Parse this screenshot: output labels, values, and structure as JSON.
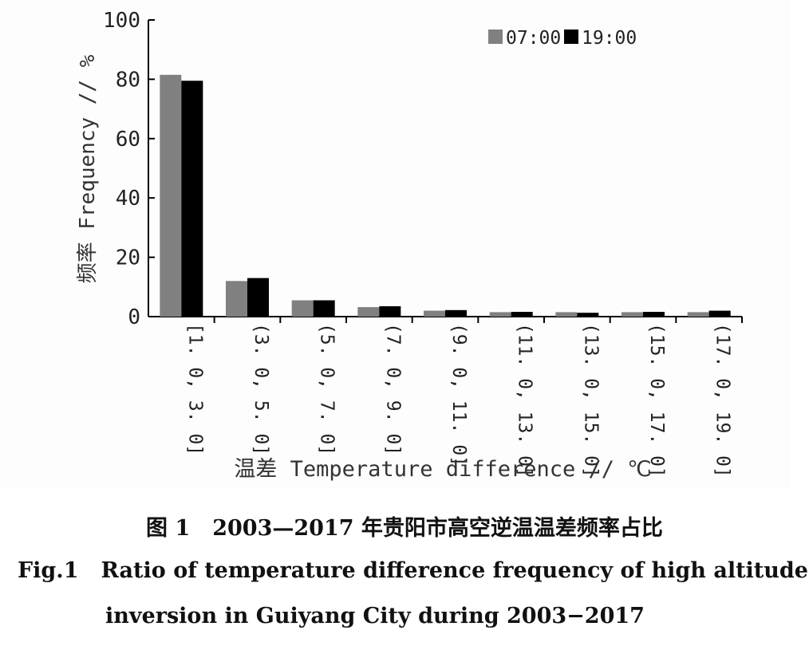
{
  "chart_data": {
    "type": "bar",
    "ylabel": "频率 Frequency // %",
    "xlabel": "温差 Temperature difference // ℃",
    "ylim": [
      0,
      100
    ],
    "yticks": [
      0,
      20,
      40,
      60,
      80,
      100
    ],
    "legend_position": "top-right",
    "categories": [
      "[1. 0, 3. 0]",
      "(3. 0, 5. 0]",
      "(5. 0, 7. 0]",
      "(7. 0, 9. 0]",
      "(9. 0, 11. 0]",
      "(11. 0, 13. 0]",
      "(13. 0, 15. 0]",
      "(15. 0, 17. 0]",
      "(17. 0, 19. 0]"
    ],
    "series": [
      {
        "name": "07:00",
        "color": "#808080",
        "values": [
          81.5,
          12.0,
          5.5,
          3.2,
          2.0,
          1.5,
          1.5,
          1.5,
          1.5
        ]
      },
      {
        "name": "19:00",
        "color": "#000000",
        "values": [
          79.5,
          13.0,
          5.5,
          3.5,
          2.2,
          1.6,
          1.3,
          1.6,
          2.0
        ]
      }
    ]
  },
  "caption": {
    "cn_label": "图 1",
    "cn_text": "2003—2017 年贵阳市高空逆温温差频率占比",
    "en_label": "Fig.1",
    "en_line1": "Ratio of temperature difference frequency of high altitude",
    "en_line2": "inversion in Guiyang City during 2003−2017"
  }
}
